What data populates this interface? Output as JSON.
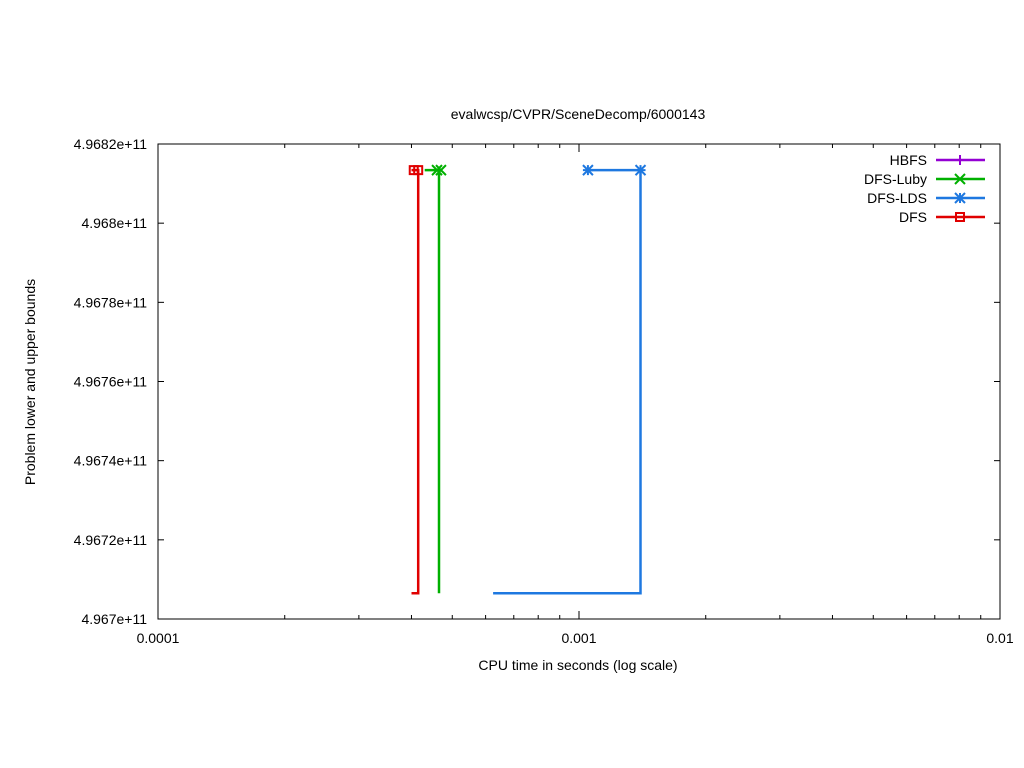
{
  "chart_data": {
    "type": "line",
    "title": "evalwcsp/CVPR/SceneDecomp/6000143",
    "xlabel": "CPU time in seconds (log scale)",
    "ylabel": "Problem lower and upper bounds",
    "xscale": "log",
    "xlim": [
      0.0001,
      0.01
    ],
    "ylim": [
      496700000000,
      496820000000
    ],
    "x_ticks": [
      {
        "value": 0.0001,
        "label": "0.0001"
      },
      {
        "value": 0.001,
        "label": "0.001"
      },
      {
        "value": 0.01,
        "label": "0.01"
      }
    ],
    "y_ticks": [
      {
        "value": 496700000000,
        "label": "4.967e+11"
      },
      {
        "value": 496720000000,
        "label": "4.9672e+11"
      },
      {
        "value": 496740000000,
        "label": "4.9674e+11"
      },
      {
        "value": 496760000000,
        "label": "4.9676e+11"
      },
      {
        "value": 496780000000,
        "label": "4.9678e+11"
      },
      {
        "value": 496800000000,
        "label": "4.968e+11"
      },
      {
        "value": 496820000000,
        "label": "4.9682e+11"
      }
    ],
    "grid": false,
    "legend": "top-right",
    "series": [
      {
        "name": "HBFS",
        "color": "#9400d3",
        "marker": "plus",
        "lines": [],
        "points": []
      },
      {
        "name": "DFS-Luby",
        "color": "#00b000",
        "marker": "cross",
        "lines": [
          [
            [
              0.000465,
              496706500000
            ],
            [
              0.000465,
              496813400000
            ],
            [
              0.00043,
              496813400000
            ]
          ]
        ],
        "points": [
          [
            0.00046,
            496813400000
          ],
          [
            0.00047,
            496813400000
          ]
        ]
      },
      {
        "name": "DFS-LDS",
        "color": "#1e78e0",
        "marker": "asterisk",
        "lines": [
          [
            [
              0.000625,
              496706500000
            ],
            [
              0.0014,
              496706500000
            ],
            [
              0.0014,
              496813400000
            ],
            [
              0.00105,
              496813400000
            ]
          ]
        ],
        "points": [
          [
            0.00105,
            496813400000
          ],
          [
            0.0014,
            496813400000
          ]
        ]
      },
      {
        "name": "DFS",
        "color": "#e00000",
        "marker": "square",
        "lines": [
          [
            [
              0.0004,
              496706500000
            ],
            [
              0.000415,
              496706500000
            ],
            [
              0.000415,
              496813400000
            ],
            [
              0.0004,
              496813400000
            ]
          ]
        ],
        "points": [
          [
            0.000405,
            496813400000
          ],
          [
            0.000415,
            496813400000
          ]
        ]
      }
    ]
  }
}
